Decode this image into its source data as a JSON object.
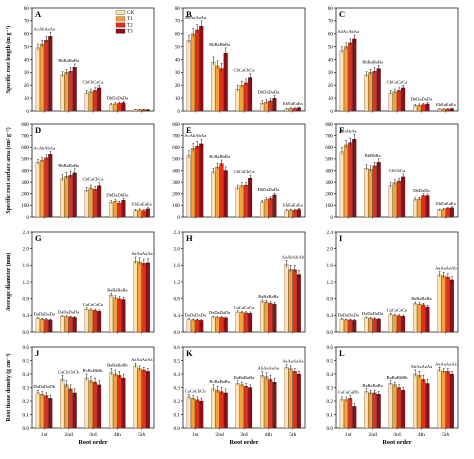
{
  "colors": {
    "CK": "#fbe3b6",
    "T1": "#f1a43a",
    "T2": "#e0301e",
    "T3": "#8b0f18"
  },
  "chart_data": {
    "type": "bar",
    "categories": [
      "1st",
      "2nd",
      "3rd",
      "4th",
      "5th"
    ],
    "x_axis_label": "Root order",
    "legend": [
      "CK",
      "T1",
      "T2",
      "T3"
    ],
    "rows": [
      {
        "ylabel": "Specific root length (m g⁻¹)",
        "ylim": [
          0,
          80
        ],
        "yticks": [
          0,
          10,
          20,
          30,
          40,
          50,
          60,
          70,
          80
        ]
      },
      {
        "ylabel": "Specific root surface area (cm² g⁻¹)",
        "ylim": [
          0,
          800
        ],
        "yticks": [
          0,
          100,
          200,
          300,
          400,
          500,
          600,
          700,
          800
        ]
      },
      {
        "ylabel": "Average diameter (mm)",
        "ylim": [
          0,
          2.4
        ],
        "yticks": [
          "0.0",
          "0.4",
          "0.8",
          "1.2",
          "1.6",
          "2.0",
          "2.4"
        ]
      },
      {
        "ylabel": "Root tissue density (g cm⁻³)",
        "ylim": [
          0,
          0.6
        ],
        "yticks": [
          "0.0",
          "0.1",
          "0.2",
          "0.3",
          "0.4",
          "0.5",
          "0.6"
        ]
      }
    ],
    "panels": [
      {
        "id": "A",
        "row": 0,
        "col": 0,
        "series": [
          [
            49,
            28,
            14,
            5,
            1
          ],
          [
            52,
            30,
            15,
            5.5,
            1
          ],
          [
            55,
            31,
            16,
            6,
            1
          ],
          [
            58,
            34,
            18,
            6.5,
            1
          ]
        ],
        "errors": [
          3,
          2.5,
          2,
          1,
          0.3
        ],
        "labels": [
          "AcAbAaAa",
          "BbBaBaBa",
          "CbCbCaCa",
          "DbDaDaDa",
          ""
        ]
      },
      {
        "id": "B",
        "row": 0,
        "col": 1,
        "series": [
          [
            55,
            38,
            17,
            6,
            1.5
          ],
          [
            60,
            35,
            20,
            7,
            2
          ],
          [
            63,
            33,
            22,
            8,
            2
          ],
          [
            66,
            45,
            26,
            10,
            2.5
          ]
        ],
        "errors": [
          4,
          4,
          3,
          2,
          0.5
        ],
        "labels": [
          "AbAaAaAa",
          "BbBaBbBa",
          "CbCaCbCa",
          "DbDaDaDa",
          "EbEaEaEa"
        ]
      },
      {
        "id": "C",
        "row": 0,
        "col": 2,
        "series": [
          [
            47,
            28,
            14,
            4,
            1.5
          ],
          [
            50,
            30,
            15,
            4.5,
            1.5
          ],
          [
            53,
            31,
            16,
            5,
            1.5
          ],
          [
            56,
            33,
            18,
            5.5,
            1.8
          ]
        ],
        "errors": [
          3,
          2.5,
          2,
          1,
          0.4
        ],
        "labels": [
          "AdAcAbAa",
          "BbBaBaBa",
          "CbCaCaCa",
          "DbDaDaDa",
          "EbEaEaEa"
        ]
      },
      {
        "id": "D",
        "row": 1,
        "col": 0,
        "series": [
          [
            470,
            330,
            230,
            125,
            55
          ],
          [
            490,
            350,
            250,
            135,
            60
          ],
          [
            510,
            360,
            240,
            120,
            55
          ],
          [
            540,
            380,
            270,
            145,
            70
          ]
        ],
        "errors": [
          25,
          35,
          25,
          15,
          10
        ],
        "labels": [
          "AcAbAbAa",
          "BbBaBaBa",
          "CbCaCbCa",
          "DbDaDbDa",
          "EbEaEaEa"
        ]
      },
      {
        "id": "E",
        "row": 1,
        "col": 1,
        "series": [
          [
            530,
            390,
            250,
            130,
            55
          ],
          [
            590,
            430,
            270,
            150,
            60
          ],
          [
            610,
            460,
            275,
            160,
            60
          ],
          [
            630,
            400,
            335,
            190,
            65
          ]
        ],
        "errors": [
          40,
          30,
          25,
          15,
          8
        ],
        "labels": [
          "AcAbAbAa",
          "BcBaBbBa",
          "CbCaCbCa",
          "DbDaDaDa",
          "EbEaEaEa"
        ]
      },
      {
        "id": "F",
        "row": 1,
        "col": 2,
        "series": [
          [
            560,
            420,
            270,
            150,
            60
          ],
          [
            620,
            410,
            295,
            155,
            65
          ],
          [
            640,
            440,
            310,
            185,
            75
          ],
          [
            670,
            470,
            345,
            185,
            80
          ]
        ],
        "errors": [
          40,
          30,
          25,
          15,
          8
        ],
        "labels": [
          "AbAbAa",
          "BbBbBa",
          "CbCbCa",
          "DbDaDa",
          "EbEaEaEa"
        ]
      },
      {
        "id": "G",
        "row": 2,
        "col": 0,
        "series": [
          [
            0.33,
            0.38,
            0.55,
            0.88,
            1.7
          ],
          [
            0.31,
            0.37,
            0.53,
            0.82,
            1.68
          ],
          [
            0.3,
            0.36,
            0.52,
            0.8,
            1.65
          ],
          [
            0.29,
            0.35,
            0.5,
            0.78,
            1.66
          ]
        ],
        "errors": [
          0.02,
          0.02,
          0.03,
          0.05,
          0.1
        ],
        "labels": [
          "DaDaDaDa",
          "DaDaDaDa",
          "CaCaCaCa",
          "BaBaBaBa",
          "AaAaAaAa"
        ]
      },
      {
        "id": "H",
        "row": 2,
        "col": 1,
        "series": [
          [
            0.3,
            0.36,
            0.48,
            0.73,
            1.62
          ],
          [
            0.29,
            0.35,
            0.47,
            0.72,
            1.5
          ],
          [
            0.29,
            0.35,
            0.46,
            0.69,
            1.5
          ],
          [
            0.28,
            0.34,
            0.45,
            0.67,
            1.38
          ]
        ],
        "errors": [
          0.02,
          0.02,
          0.03,
          0.04,
          0.1
        ],
        "labels": [
          "DaDaDaDa",
          "DaDaDaDa",
          "CaCaCaCa",
          "BaBaBaBa",
          "AaAbAbAb"
        ]
      },
      {
        "id": "I",
        "row": 2,
        "col": 2,
        "series": [
          [
            0.31,
            0.34,
            0.42,
            0.68,
            1.37
          ],
          [
            0.29,
            0.33,
            0.4,
            0.67,
            1.35
          ],
          [
            0.29,
            0.32,
            0.39,
            0.65,
            1.32
          ],
          [
            0.28,
            0.31,
            0.38,
            0.6,
            1.25
          ]
        ],
        "errors": [
          0.02,
          0.02,
          0.03,
          0.04,
          0.08
        ],
        "labels": [
          "DaDaDaDa",
          "DaDaDaDa",
          "CaCaCaCa",
          "BaBaBaBa",
          "AaAaAaAb"
        ]
      },
      {
        "id": "J",
        "row": 3,
        "col": 0,
        "series": [
          [
            0.26,
            0.36,
            0.37,
            0.41,
            0.46
          ],
          [
            0.25,
            0.32,
            0.35,
            0.4,
            0.44
          ],
          [
            0.24,
            0.29,
            0.34,
            0.39,
            0.43
          ],
          [
            0.22,
            0.26,
            0.32,
            0.37,
            0.42
          ]
        ],
        "errors": [
          0.02,
          0.03,
          0.03,
          0.03,
          0.02
        ],
        "labels": [
          "DaDaDaDb",
          "CaCbCbCb",
          "BcBcBbBc",
          "BaBaBaBb",
          "AaAaAaAa"
        ]
      },
      {
        "id": "K",
        "row": 3,
        "col": 1,
        "series": [
          [
            0.23,
            0.29,
            0.33,
            0.39,
            0.45
          ],
          [
            0.22,
            0.28,
            0.32,
            0.38,
            0.44
          ],
          [
            0.21,
            0.27,
            0.31,
            0.36,
            0.42
          ],
          [
            0.2,
            0.26,
            0.3,
            0.34,
            0.4
          ]
        ],
        "errors": [
          0.02,
          0.03,
          0.02,
          0.03,
          0.02
        ],
        "labels": [
          "CaCaCbCb",
          "BcBaBaBa",
          "BaBaBaBa",
          "AbAaAaAa",
          "AaAaAaAa"
        ]
      },
      {
        "id": "L",
        "row": 3,
        "col": 2,
        "series": [
          [
            0.21,
            0.27,
            0.33,
            0.4,
            0.43
          ],
          [
            0.21,
            0.26,
            0.32,
            0.39,
            0.42
          ],
          [
            0.22,
            0.26,
            0.3,
            0.36,
            0.42
          ],
          [
            0.16,
            0.25,
            0.28,
            0.33,
            0.4
          ]
        ],
        "errors": [
          0.02,
          0.02,
          0.02,
          0.03,
          0.02
        ],
        "labels": [
          "CaCaCaDb",
          "BaBaBaBa",
          "BaBaBbBb",
          "AbAaAaAa",
          "AaAaAaAa"
        ]
      }
    ]
  }
}
